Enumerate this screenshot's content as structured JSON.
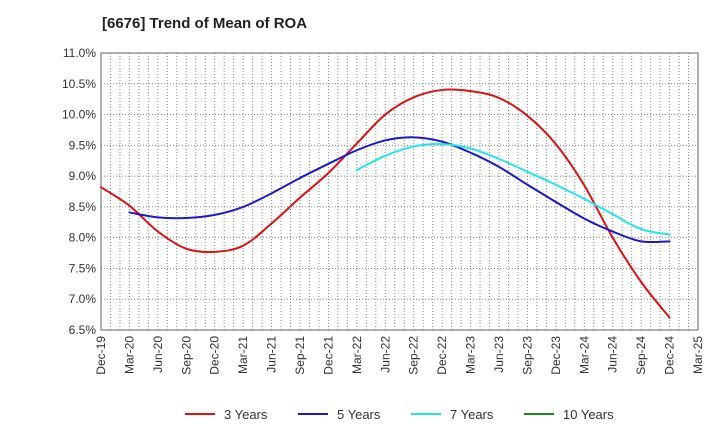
{
  "chart_data": {
    "type": "line",
    "title": "[6676]  Trend of Mean of ROA",
    "xlabel": "",
    "ylabel": "",
    "ylim": [
      6.5,
      11.0
    ],
    "y_ticks": [
      "6.5%",
      "7.0%",
      "7.5%",
      "8.0%",
      "8.5%",
      "9.0%",
      "9.5%",
      "10.0%",
      "10.5%",
      "11.0%"
    ],
    "categories": [
      "Dec-19",
      "Mar-20",
      "Jun-20",
      "Sep-20",
      "Dec-20",
      "Mar-21",
      "Jun-21",
      "Sep-21",
      "Dec-21",
      "Mar-22",
      "Jun-22",
      "Sep-22",
      "Dec-22",
      "Mar-23",
      "Jun-23",
      "Sep-23",
      "Dec-23",
      "Mar-24",
      "Jun-24",
      "Sep-24",
      "Dec-24",
      "Mar-25"
    ],
    "grid": true,
    "legend_position": "bottom",
    "series": [
      {
        "name": "3 Years",
        "color": "#dd1111",
        "values": [
          8.82,
          8.52,
          8.1,
          7.82,
          7.77,
          7.87,
          8.23,
          8.65,
          9.05,
          9.53,
          10.0,
          10.28,
          10.4,
          10.38,
          10.27,
          9.98,
          9.52,
          8.85,
          8.0,
          7.28,
          6.7,
          null
        ]
      },
      {
        "name": "5 Years",
        "color": "#1a1acc",
        "values": [
          null,
          8.41,
          8.33,
          8.32,
          8.37,
          8.5,
          8.72,
          8.97,
          9.2,
          9.42,
          9.58,
          9.63,
          9.56,
          9.38,
          9.15,
          8.86,
          8.58,
          8.31,
          8.1,
          7.94,
          7.94,
          null
        ]
      },
      {
        "name": "7 Years",
        "color": "#22e5ee",
        "values": [
          null,
          null,
          null,
          null,
          null,
          null,
          null,
          null,
          null,
          9.1,
          9.33,
          9.48,
          9.52,
          9.45,
          9.28,
          9.07,
          8.86,
          8.63,
          8.38,
          8.14,
          8.05,
          null
        ]
      },
      {
        "name": "10 Years",
        "color": "#1f8a1f",
        "values": [
          null,
          null,
          null,
          null,
          null,
          null,
          null,
          null,
          null,
          null,
          null,
          null,
          null,
          null,
          null,
          null,
          null,
          null,
          null,
          null,
          null,
          null
        ]
      }
    ]
  }
}
